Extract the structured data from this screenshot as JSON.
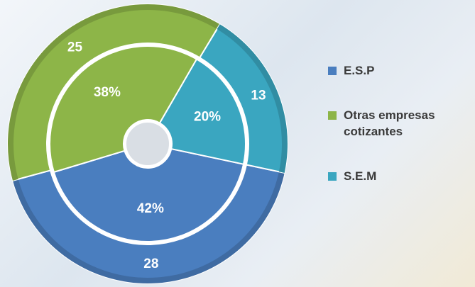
{
  "chart_data": {
    "type": "pie",
    "categories": [
      "E.S.P",
      "Otras empresas cotizantes",
      "S.E.M"
    ],
    "colors": [
      "#4a7ebf",
      "#8db548",
      "#3aa6c0"
    ],
    "series": [
      {
        "values": [
          28,
          25,
          13
        ]
      },
      {
        "values": [
          42,
          38,
          20
        ],
        "value_labels": [
          "42%",
          "38%",
          "20%"
        ]
      }
    ]
  }
}
